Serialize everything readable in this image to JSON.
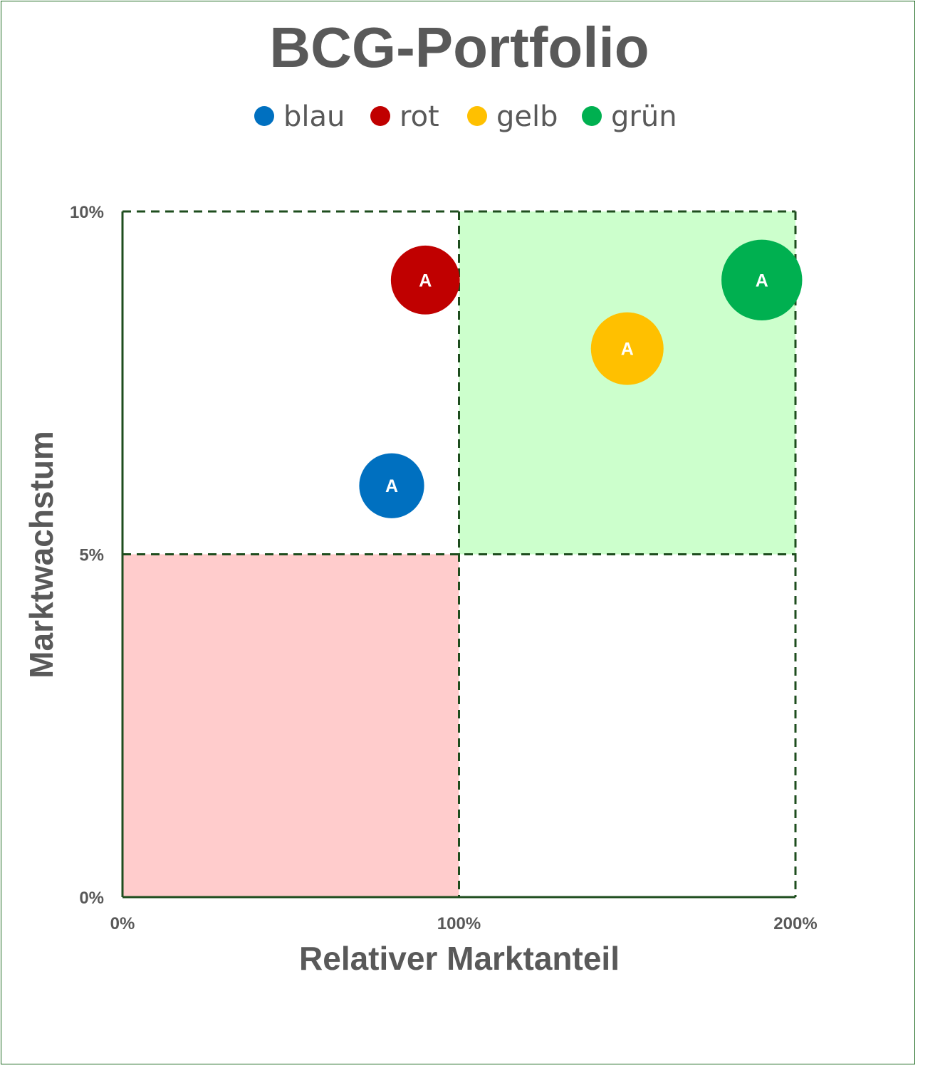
{
  "chart_data": {
    "type": "scatter",
    "title": "BCG-Portfolio",
    "xlabel": "Relativer Marktanteil",
    "ylabel": "Marktwachstum",
    "xlim": [
      0,
      200
    ],
    "ylim": [
      0,
      10
    ],
    "x_ticks": [
      {
        "value": 0,
        "label": "0%"
      },
      {
        "value": 100,
        "label": "100%"
      },
      {
        "value": 200,
        "label": "200%"
      }
    ],
    "y_ticks": [
      {
        "value": 0,
        "label": "0%"
      },
      {
        "value": 5,
        "label": "5%"
      },
      {
        "value": 10,
        "label": "10%"
      }
    ],
    "legend_position": "top",
    "grid": "dashed quadrant dividers",
    "quadrants": [
      {
        "x_range": [
          100,
          200
        ],
        "y_range": [
          5,
          10
        ],
        "color": "#ccffcc"
      },
      {
        "x_range": [
          0,
          100
        ],
        "y_range": [
          0,
          5
        ],
        "color": "#ffcccc"
      }
    ],
    "series": [
      {
        "name": "blau",
        "color": "#0070c0",
        "points": [
          {
            "x": 80,
            "y": 6,
            "label": "A",
            "size": 0.8
          }
        ]
      },
      {
        "name": "rot",
        "color": "#c00000",
        "points": [
          {
            "x": 90,
            "y": 9,
            "label": "A",
            "size": 0.9
          }
        ]
      },
      {
        "name": "gelb",
        "color": "#ffc000",
        "points": [
          {
            "x": 150,
            "y": 8,
            "label": "A",
            "size": 1.0
          }
        ]
      },
      {
        "name": "grün",
        "color": "#00b050",
        "points": [
          {
            "x": 190,
            "y": 9,
            "label": "A",
            "size": 1.1
          }
        ]
      }
    ]
  }
}
